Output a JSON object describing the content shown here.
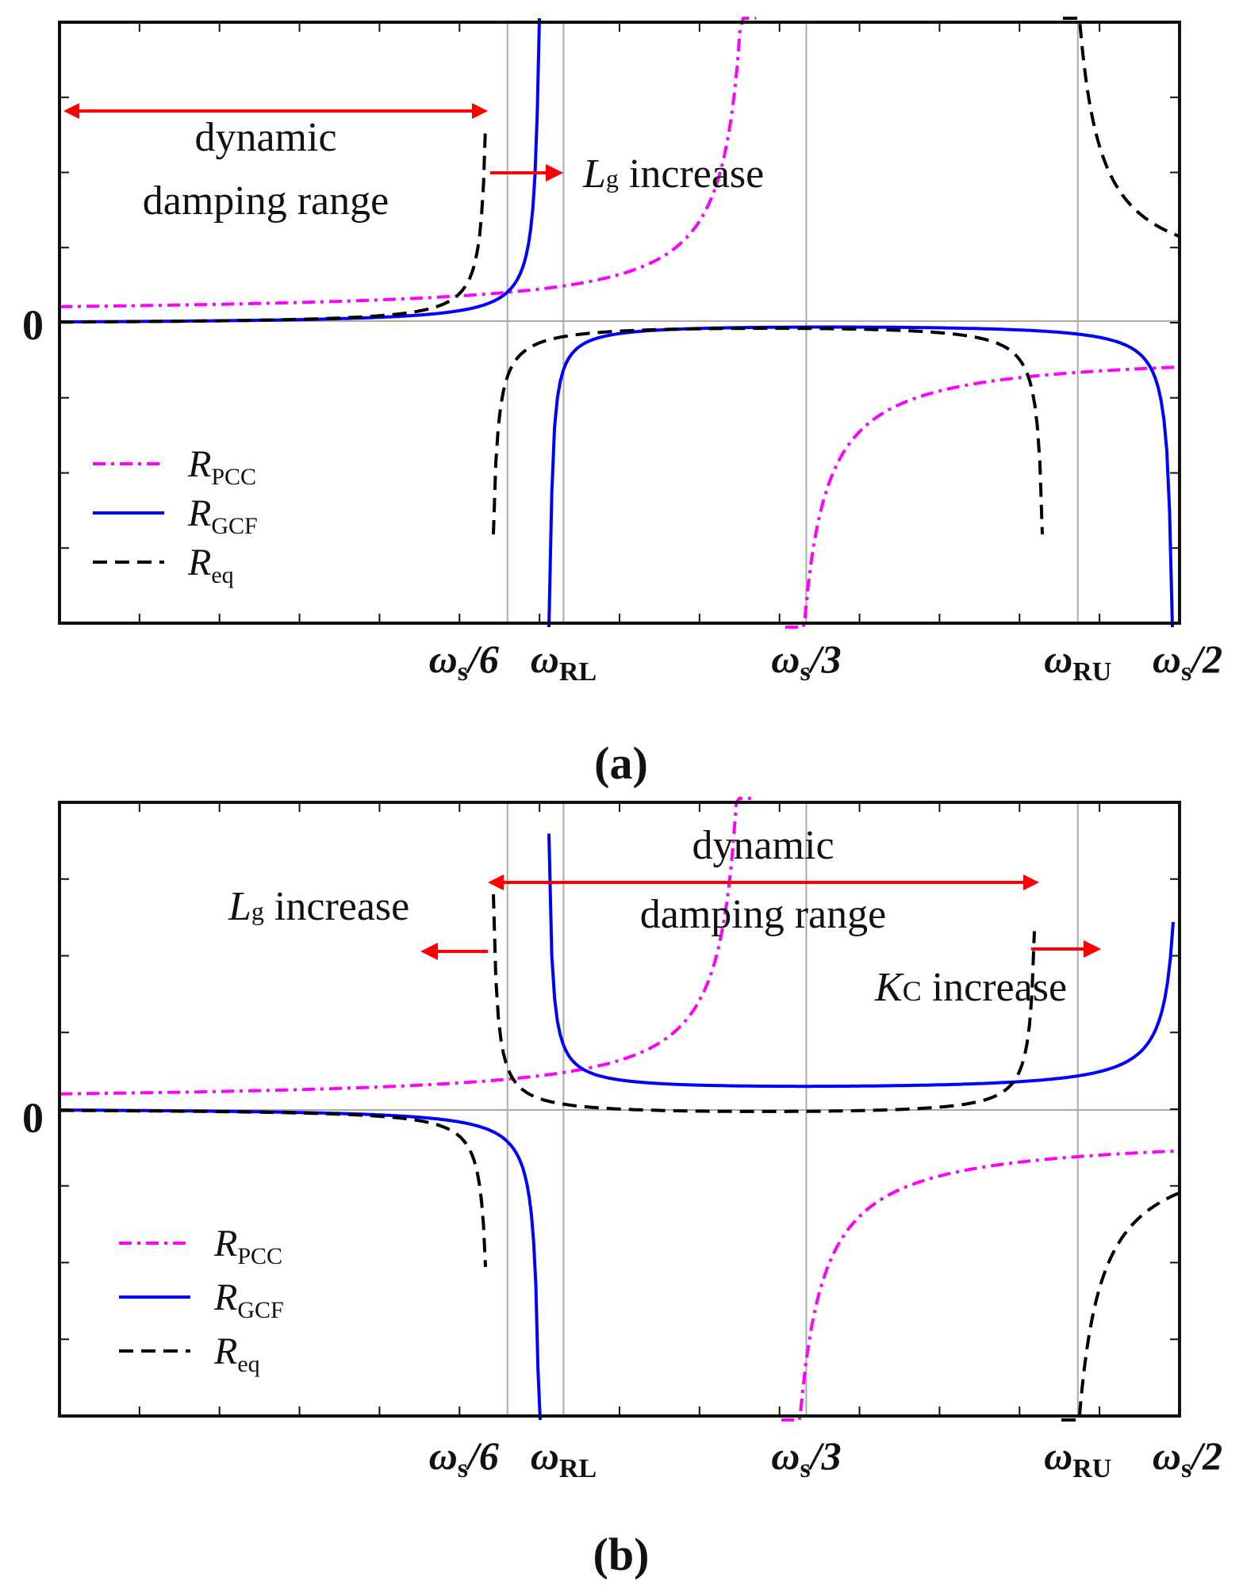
{
  "chart_data": [
    {
      "type": "line",
      "caption": "(a)",
      "zero_label": "0",
      "x_ticks": [
        {
          "label_main": "ω",
          "label_sub": "s",
          "label_tail": "/6",
          "x": 0.3333
        },
        {
          "label_main": "ω",
          "label_sub": "RL",
          "label_tail": "",
          "x": 0.375
        },
        {
          "label_main": "ω",
          "label_sub": "s",
          "label_tail": "/3",
          "x": 0.5556
        },
        {
          "label_main": "ω",
          "label_sub": "RU",
          "label_tail": "",
          "x": 0.7576
        },
        {
          "label_main": "ω",
          "label_sub": "s",
          "label_tail": "/2",
          "x": 0.8333
        }
      ],
      "xlim": [
        0.0,
        0.8333
      ],
      "ylim": [
        -4,
        4
      ],
      "series": [
        {
          "name": "R_PCC",
          "color": "#ff00ff",
          "style": "dashdot",
          "poles": [
            0.5556
          ],
          "offset": 0.13,
          "sign": 1
        },
        {
          "name": "R_GCF",
          "color": "#0000ff",
          "style": "solid",
          "poles": [
            0.375,
            0.8333
          ],
          "sign": 1
        },
        {
          "name": "R_eq",
          "color": "#000000",
          "style": "dashed",
          "poles": [
            0.3333,
            0.7576
          ],
          "sign": 1
        }
      ],
      "legend": [
        {
          "main": "R",
          "sub": "PCC",
          "color": "#ff00ff",
          "style": "dashdot"
        },
        {
          "main": "R",
          "sub": "GCF",
          "color": "#0000ff",
          "style": "solid"
        },
        {
          "main": "R",
          "sub": "eq",
          "color": "#000000",
          "style": "dashed"
        }
      ],
      "annotations": {
        "range_line1": "dynamic",
        "range_line2": "damping range",
        "lg_main": "L",
        "lg_sub": "g",
        "lg_text": " increase"
      }
    },
    {
      "type": "line",
      "caption": "(b)",
      "zero_label": "0",
      "x_ticks": [
        {
          "label_main": "ω",
          "label_sub": "s",
          "label_tail": "/6",
          "x": 0.3333
        },
        {
          "label_main": "ω",
          "label_sub": "RL",
          "label_tail": "",
          "x": 0.375
        },
        {
          "label_main": "ω",
          "label_sub": "s",
          "label_tail": "/3",
          "x": 0.5556
        },
        {
          "label_main": "ω",
          "label_sub": "RU",
          "label_tail": "",
          "x": 0.7576
        },
        {
          "label_main": "ω",
          "label_sub": "s",
          "label_tail": "/2",
          "x": 0.8333
        }
      ],
      "xlim": [
        0.0,
        0.8333
      ],
      "ylim": [
        -4,
        4
      ],
      "series": [
        {
          "name": "R_PCC",
          "color": "#ff00ff",
          "style": "dashdot"
        },
        {
          "name": "R_GCF",
          "color": "#0000ff",
          "style": "solid"
        },
        {
          "name": "R_eq",
          "color": "#000000",
          "style": "dashed"
        }
      ],
      "legend": [
        {
          "main": "R",
          "sub": "PCC",
          "color": "#ff00ff",
          "style": "dashdot"
        },
        {
          "main": "R",
          "sub": "GCF",
          "color": "#0000ff",
          "style": "solid"
        },
        {
          "main": "R",
          "sub": "eq",
          "color": "#000000",
          "style": "dashed"
        }
      ],
      "annotations": {
        "range_line1": "dynamic",
        "range_line2": "damping range",
        "lg_main": "L",
        "lg_sub": "g",
        "lg_text": " increase",
        "kc_main": "K",
        "kc_sub": "C",
        "kc_text": " increase"
      }
    }
  ]
}
